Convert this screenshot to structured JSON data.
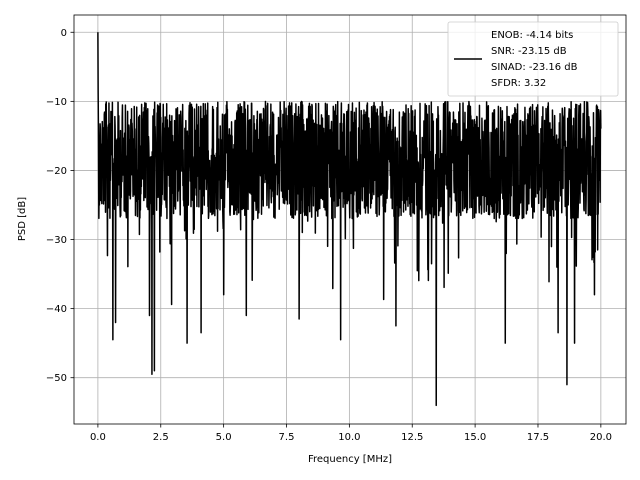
{
  "chart_data": {
    "type": "line",
    "title": "",
    "xlabel": "Frequency [MHz]",
    "ylabel": "PSD [dB]",
    "xlim": [
      -0.95,
      21.0
    ],
    "ylim": [
      -56.7,
      2.5
    ],
    "xticks": [
      0.0,
      2.5,
      5.0,
      7.5,
      10.0,
      12.5,
      15.0,
      17.5,
      20.0
    ],
    "xtick_labels": [
      "0.0",
      "2.5",
      "5.0",
      "7.5",
      "10.0",
      "12.5",
      "15.0",
      "17.5",
      "20.0"
    ],
    "yticks": [
      0,
      -10,
      -20,
      -30,
      -40,
      -50
    ],
    "ytick_labels": [
      "0",
      "−10",
      "−20",
      "−30",
      "−40",
      "−50"
    ],
    "grid": true,
    "legend": {
      "placement": "top-right",
      "entries": [
        "ENOB: -4.14 bits",
        "SNR: -23.15 dB",
        "SINAD: -23.16 dB",
        "SFDR: 3.32"
      ]
    },
    "series": [
      {
        "color": "#000000",
        "x_range": [
          0.0,
          20.0
        ],
        "points": 2048,
        "noise_floor_db": [
          -27,
          -10
        ],
        "peak": {
          "x": 0.0,
          "y": 0.0
        },
        "dips": [
          {
            "x": 0.6,
            "y": -44.5
          },
          {
            "x": 0.7,
            "y": -42.0
          },
          {
            "x": 2.05,
            "y": -41.0
          },
          {
            "x": 2.15,
            "y": -49.5
          },
          {
            "x": 2.25,
            "y": -49.0
          },
          {
            "x": 3.55,
            "y": -45.0
          },
          {
            "x": 4.1,
            "y": -43.5
          },
          {
            "x": 5.0,
            "y": -38.0
          },
          {
            "x": 5.9,
            "y": -41.0
          },
          {
            "x": 8.0,
            "y": -41.5
          },
          {
            "x": 9.65,
            "y": -44.5
          },
          {
            "x": 11.85,
            "y": -42.5
          },
          {
            "x": 13.45,
            "y": -54.0
          },
          {
            "x": 16.2,
            "y": -45.0
          },
          {
            "x": 18.3,
            "y": -43.5
          },
          {
            "x": 18.65,
            "y": -51.0
          },
          {
            "x": 18.95,
            "y": -45.0
          },
          {
            "x": 19.75,
            "y": -38.0
          }
        ]
      }
    ]
  }
}
